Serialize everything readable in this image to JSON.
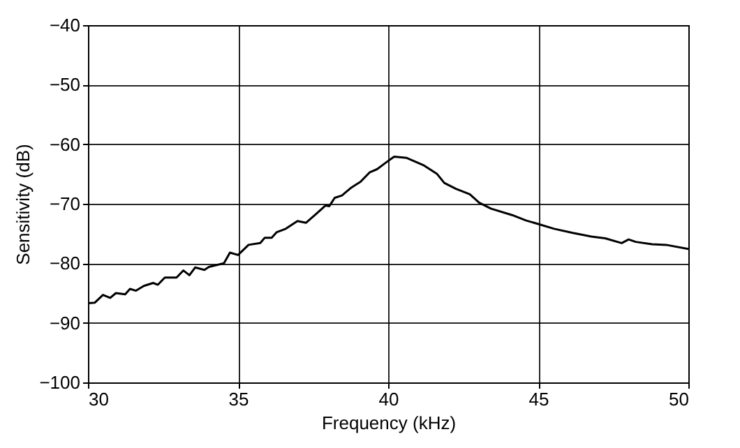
{
  "chart_data": {
    "type": "line",
    "xlabel": "Frequency (kHz)",
    "ylabel": "Sensitivity (dB)",
    "xlim": [
      30,
      50
    ],
    "xticks": [
      30,
      35,
      40,
      45,
      50
    ],
    "ylim": [
      -100,
      -40
    ],
    "yticks": [
      -100,
      -90,
      -80,
      -70,
      -60,
      -50,
      -40
    ],
    "grid": true,
    "line_style": "solid",
    "x": [
      30,
      30.23,
      30.5,
      30.74,
      30.93,
      31.24,
      31.4,
      31.6,
      31.86,
      32.17,
      32.33,
      32.56,
      32.95,
      33.18,
      33.38,
      33.57,
      33.88,
      34.03,
      34.53,
      34.73,
      35,
      35.35,
      35.74,
      35.89,
      36.12,
      36.28,
      36.59,
      36.74,
      36.98,
      37.26,
      37.6,
      37.91,
      38.04,
      38.22,
      38.46,
      38.77,
      39.08,
      39.39,
      39.63,
      39.92,
      40.2,
      40.62,
      41.17,
      41.63,
      41.87,
      42.26,
      42.72,
      43.03,
      43.42,
      44.13,
      44.59,
      45,
      45.53,
      46.15,
      46.77,
      47.23,
      47.78,
      48.01,
      48.25,
      48.79,
      49.26,
      50
    ],
    "series": [
      {
        "color": "#000000",
        "values": [
          -86.7,
          -86.6,
          -85.3,
          -85.8,
          -85,
          -85.2,
          -84.3,
          -84.6,
          -83.8,
          -83.3,
          -83.6,
          -82.4,
          -82.4,
          -81.2,
          -82,
          -80.7,
          -81.1,
          -80.6,
          -80,
          -78.2,
          -78.6,
          -76.9,
          -76.6,
          -75.7,
          -75.7,
          -74.8,
          -74.2,
          -73.7,
          -72.9,
          -73.2,
          -71.7,
          -70.3,
          -70.4,
          -69,
          -68.6,
          -67.3,
          -66.3,
          -64.7,
          -64.2,
          -63.1,
          -62.1,
          -62.3,
          -63.5,
          -65,
          -66.5,
          -67.5,
          -68.4,
          -69.8,
          -70.8,
          -71.9,
          -72.8,
          -73.4,
          -74.2,
          -74.9,
          -75.5,
          -75.8,
          -76.6,
          -76,
          -76.4,
          -76.8,
          -76.9,
          -77.6
        ]
      }
    ]
  }
}
